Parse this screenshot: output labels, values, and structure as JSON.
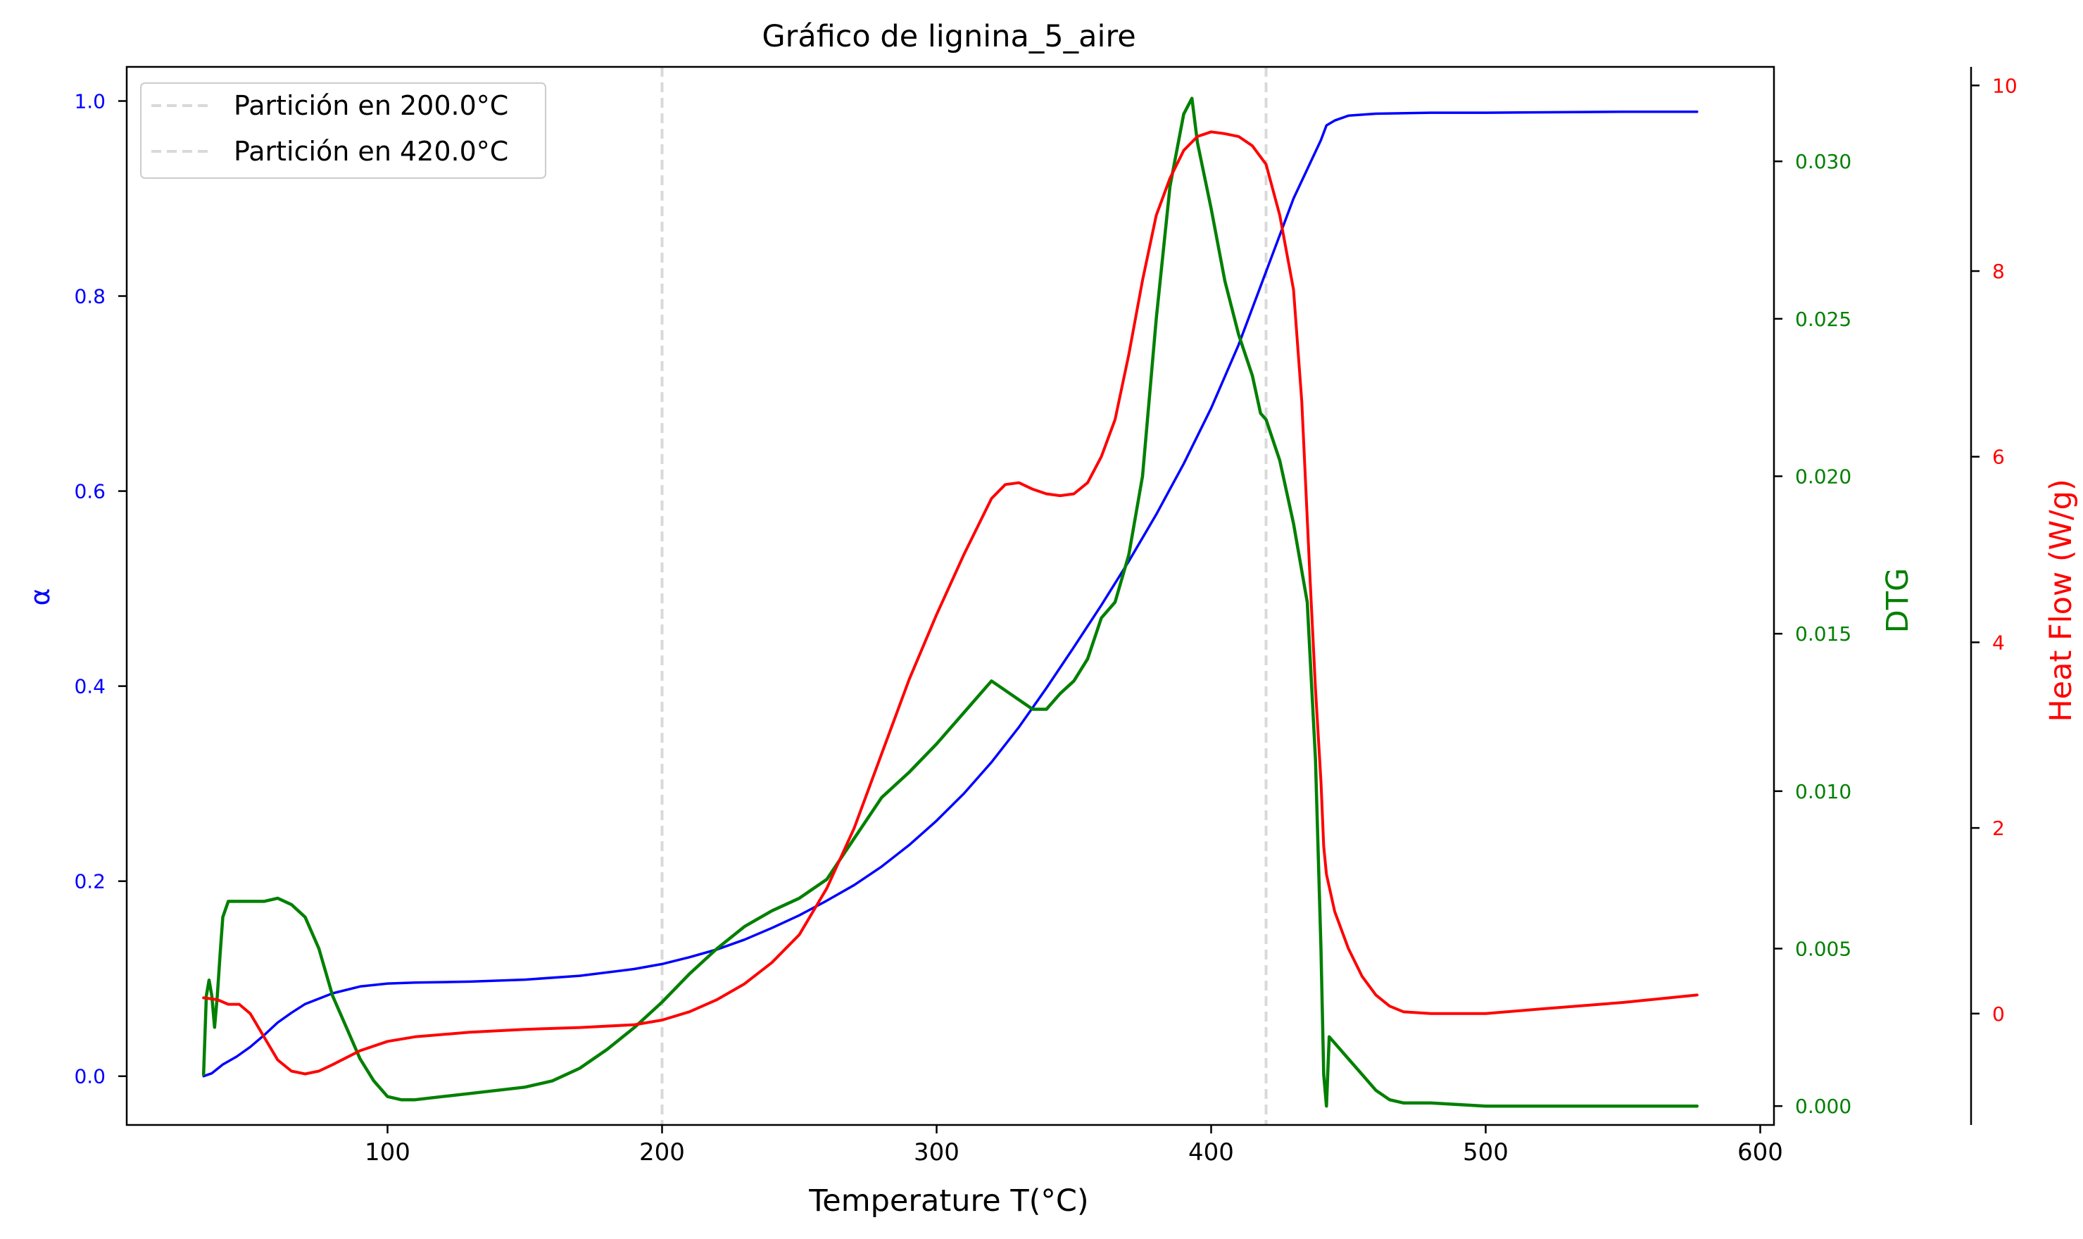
{
  "chart_data": {
    "type": "line",
    "title": "Gráfico de lignina_5_aire",
    "xlabel": "Temperature T(°C)",
    "xlim": [
      5,
      605
    ],
    "xticks": [
      100,
      200,
      300,
      400,
      500,
      600
    ],
    "axes": {
      "alpha": {
        "label": "α",
        "color": "#0000ff",
        "lim": [
          -0.05,
          1.035
        ],
        "ticks": [
          "0.0",
          "0.2",
          "0.4",
          "0.6",
          "0.8",
          "1.0"
        ]
      },
      "dtg": {
        "label": "DTG",
        "color": "#008000",
        "lim": [
          -0.0006,
          0.033
        ],
        "ticks": [
          "0.000",
          "0.005",
          "0.010",
          "0.015",
          "0.020",
          "0.025",
          "0.030"
        ]
      },
      "heat": {
        "label": "Heat Flow (W/g)",
        "color": "#ff0000",
        "lim": [
          -1.2,
          10.2
        ],
        "ticks": [
          "0",
          "2",
          "4",
          "6",
          "8",
          "10"
        ]
      }
    },
    "legend": {
      "position": "top-left",
      "entries": [
        "Partición en 200.0°C",
        "Partición en 420.0°C"
      ]
    },
    "partitions": [
      200,
      420
    ],
    "grid": false,
    "series": [
      {
        "name": "α",
        "axis": "alpha",
        "color": "#0000ff",
        "x": [
          33,
          36,
          40,
          45,
          50,
          55,
          60,
          65,
          70,
          80,
          90,
          100,
          110,
          130,
          150,
          170,
          190,
          200,
          210,
          220,
          230,
          240,
          250,
          260,
          270,
          280,
          290,
          300,
          310,
          320,
          330,
          340,
          350,
          360,
          370,
          380,
          390,
          400,
          410,
          420,
          430,
          440,
          442,
          445,
          450,
          460,
          480,
          500,
          550,
          577
        ],
        "y": [
          0.0,
          0.003,
          0.012,
          0.02,
          0.03,
          0.042,
          0.055,
          0.065,
          0.074,
          0.085,
          0.092,
          0.095,
          0.096,
          0.097,
          0.099,
          0.103,
          0.11,
          0.115,
          0.122,
          0.13,
          0.14,
          0.152,
          0.165,
          0.18,
          0.196,
          0.215,
          0.237,
          0.262,
          0.29,
          0.322,
          0.358,
          0.398,
          0.44,
          0.483,
          0.528,
          0.576,
          0.628,
          0.685,
          0.75,
          0.825,
          0.9,
          0.96,
          0.975,
          0.98,
          0.985,
          0.987,
          0.988,
          0.988,
          0.989,
          0.989
        ]
      },
      {
        "name": "DTG",
        "axis": "dtg",
        "color": "#008000",
        "x": [
          33,
          34,
          35,
          36,
          37,
          38,
          39,
          40,
          42,
          45,
          50,
          55,
          60,
          65,
          70,
          75,
          80,
          85,
          90,
          95,
          100,
          105,
          110,
          120,
          130,
          140,
          150,
          160,
          170,
          180,
          190,
          200,
          210,
          220,
          230,
          240,
          250,
          260,
          270,
          280,
          290,
          300,
          310,
          320,
          325,
          330,
          335,
          340,
          345,
          350,
          355,
          360,
          365,
          370,
          375,
          380,
          385,
          390,
          393,
          395,
          400,
          405,
          410,
          415,
          418,
          420,
          425,
          430,
          435,
          438,
          440,
          441,
          442,
          443,
          445,
          450,
          455,
          460,
          465,
          470,
          480,
          500,
          520,
          540,
          560,
          577
        ],
        "y": [
          0.001,
          0.0035,
          0.004,
          0.0035,
          0.0025,
          0.0035,
          0.0048,
          0.006,
          0.0065,
          0.0065,
          0.0065,
          0.0065,
          0.0066,
          0.0064,
          0.006,
          0.005,
          0.0035,
          0.0025,
          0.0015,
          0.0008,
          0.0003,
          0.0002,
          0.0002,
          0.0003,
          0.0004,
          0.0005,
          0.0006,
          0.0008,
          0.0012,
          0.0018,
          0.0025,
          0.0033,
          0.0042,
          0.005,
          0.0057,
          0.0062,
          0.0066,
          0.0072,
          0.0085,
          0.0098,
          0.0106,
          0.0115,
          0.0125,
          0.0135,
          0.0132,
          0.0129,
          0.0126,
          0.0126,
          0.0131,
          0.0135,
          0.0142,
          0.0155,
          0.016,
          0.0175,
          0.02,
          0.025,
          0.0292,
          0.0315,
          0.032,
          0.0306,
          0.0285,
          0.0262,
          0.0245,
          0.0232,
          0.022,
          0.0218,
          0.0205,
          0.0185,
          0.016,
          0.011,
          0.005,
          0.001,
          0.0,
          0.0022,
          0.002,
          0.0015,
          0.001,
          0.0005,
          0.0002,
          0.0001,
          0.0001,
          0.0,
          0.0,
          0.0,
          0.0,
          0.0
        ]
      },
      {
        "name": "Heat Flow (W/g)",
        "axis": "heat",
        "color": "#ff0000",
        "x": [
          33,
          38,
          42,
          46,
          50,
          55,
          60,
          65,
          70,
          75,
          80,
          90,
          100,
          110,
          130,
          150,
          170,
          190,
          200,
          210,
          220,
          230,
          240,
          250,
          260,
          270,
          280,
          290,
          300,
          310,
          320,
          325,
          330,
          335,
          340,
          345,
          350,
          355,
          360,
          365,
          370,
          375,
          380,
          385,
          390,
          395,
          400,
          405,
          410,
          415,
          420,
          425,
          430,
          433,
          436,
          438,
          440,
          441,
          442,
          445,
          450,
          455,
          460,
          465,
          470,
          480,
          490,
          500,
          520,
          550,
          577
        ],
        "y": [
          0.17,
          0.15,
          0.1,
          0.1,
          0.0,
          -0.25,
          -0.5,
          -0.62,
          -0.65,
          -0.62,
          -0.55,
          -0.4,
          -0.3,
          -0.25,
          -0.2,
          -0.17,
          -0.15,
          -0.12,
          -0.07,
          0.02,
          0.15,
          0.32,
          0.55,
          0.85,
          1.35,
          2.0,
          2.8,
          3.6,
          4.3,
          4.95,
          5.55,
          5.7,
          5.72,
          5.65,
          5.6,
          5.58,
          5.6,
          5.72,
          6.0,
          6.4,
          7.1,
          7.9,
          8.6,
          9.0,
          9.3,
          9.45,
          9.5,
          9.48,
          9.45,
          9.35,
          9.15,
          8.6,
          7.8,
          6.6,
          4.7,
          3.5,
          2.5,
          1.8,
          1.5,
          1.1,
          0.7,
          0.4,
          0.2,
          0.08,
          0.02,
          0.0,
          0.0,
          0.0,
          0.05,
          0.12,
          0.2
        ]
      }
    ]
  }
}
